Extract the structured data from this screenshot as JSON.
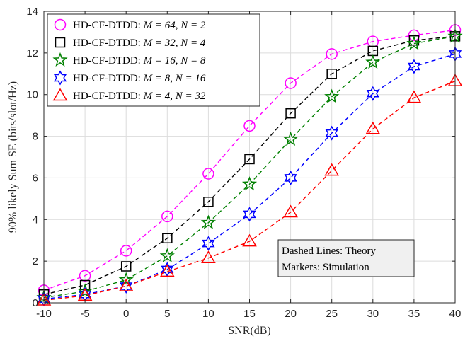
{
  "chart_data": {
    "type": "line",
    "title": "",
    "xlabel": "SNR(dB)",
    "ylabel": "90% likely Sum SE (bits/slot/Hz)",
    "xlim": [
      -10,
      40
    ],
    "ylim": [
      0,
      14
    ],
    "x": [
      -10,
      -5,
      0,
      5,
      10,
      15,
      20,
      25,
      30,
      35,
      40
    ],
    "x_tick_labels": [
      "-10",
      "-5",
      "0",
      "5",
      "10",
      "15",
      "20",
      "25",
      "30",
      "35",
      "40"
    ],
    "y_ticks": [
      0,
      2,
      4,
      6,
      8,
      10,
      12,
      14
    ],
    "y_tick_labels": [
      "0",
      "2",
      "4",
      "6",
      "8",
      "10",
      "12",
      "14"
    ],
    "grid": true,
    "legend_position": "top-left",
    "series": [
      {
        "name": "M=64,N=2",
        "legend_prefix": "HD-CF-DTDD:",
        "legend_math": "M = 64, N = 2",
        "marker": "circle",
        "color": "#ff00ff",
        "theory": [
          0.6,
          1.3,
          2.5,
          4.15,
          6.2,
          8.5,
          10.55,
          11.95,
          12.55,
          12.85,
          13.1
        ],
        "simulation": [
          0.6,
          1.3,
          2.5,
          4.15,
          6.2,
          8.5,
          10.55,
          11.95,
          12.55,
          12.85,
          13.1
        ]
      },
      {
        "name": "M=32,N=4",
        "legend_prefix": "HD-CF-DTDD:",
        "legend_math": "M = 32, N = 4",
        "marker": "square",
        "color": "#000000",
        "theory": [
          0.4,
          0.85,
          1.75,
          3.1,
          4.85,
          6.9,
          9.1,
          11.0,
          12.1,
          12.6,
          12.8
        ],
        "simulation": [
          0.4,
          0.85,
          1.75,
          3.1,
          4.85,
          6.9,
          9.1,
          11.0,
          12.1,
          12.6,
          12.8
        ]
      },
      {
        "name": "M=16,N=8",
        "legend_prefix": "HD-CF-DTDD:",
        "legend_math": "M = 16, N = 8",
        "marker": "star",
        "color": "#008000",
        "theory": [
          0.25,
          0.55,
          1.1,
          2.25,
          3.85,
          5.7,
          7.85,
          9.9,
          11.55,
          12.45,
          12.8
        ],
        "simulation": [
          0.25,
          0.55,
          1.1,
          2.25,
          3.85,
          5.7,
          7.85,
          9.9,
          11.55,
          12.45,
          12.8
        ]
      },
      {
        "name": "M=8,N=16",
        "legend_prefix": "HD-CF-DTDD:",
        "legend_math": "M = 8, N = 16",
        "marker": "hexagram",
        "color": "#0000ff",
        "theory": [
          0.18,
          0.4,
          0.8,
          1.6,
          2.85,
          4.25,
          6.0,
          8.15,
          10.05,
          11.35,
          11.95
        ],
        "simulation": [
          0.18,
          0.4,
          0.8,
          1.6,
          2.85,
          4.25,
          6.0,
          8.15,
          10.05,
          11.35,
          11.95
        ]
      },
      {
        "name": "M=4,N=32",
        "legend_prefix": "HD-CF-DTDD:",
        "legend_math": "M = 4, N = 32",
        "marker": "triangle",
        "color": "#ff0000",
        "theory": [
          0.12,
          0.35,
          0.8,
          1.5,
          2.15,
          2.95,
          4.35,
          6.35,
          8.35,
          9.85,
          10.65
        ],
        "simulation": [
          0.12,
          0.35,
          0.8,
          1.5,
          2.15,
          2.95,
          4.35,
          6.35,
          8.35,
          9.85,
          10.65
        ]
      }
    ],
    "annotation": {
      "lines": [
        "Dashed Lines: Theory",
        "Markers: Simulation"
      ]
    }
  }
}
